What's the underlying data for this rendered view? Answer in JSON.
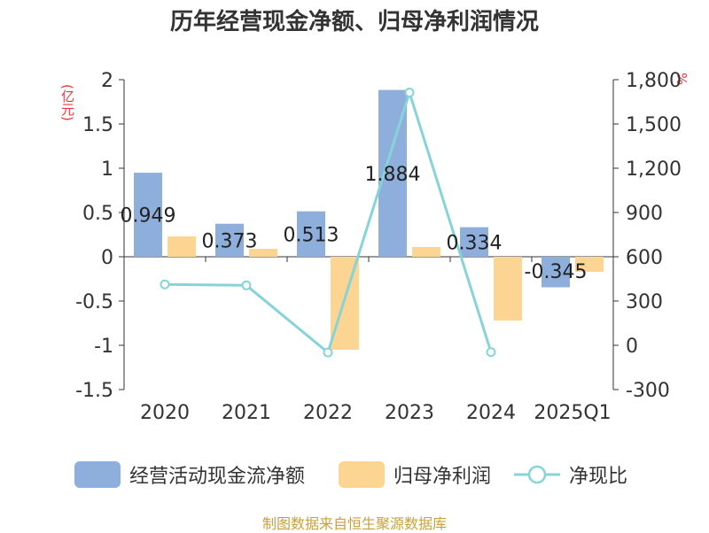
{
  "title": "历年经营现金净额、归母净利润情况",
  "source": "制图数据来自恒生聚源数据库",
  "chart_data": {
    "type": "bar",
    "title": "历年经营现金净额、归母净利润情况",
    "categories": [
      "2020",
      "2021",
      "2022",
      "2023",
      "2024",
      "2025Q1"
    ],
    "left_axis": {
      "unit": "(亿元)",
      "min": -1.5,
      "max": 2,
      "ticks": [
        "2",
        "1.5",
        "1",
        "0.5",
        "0",
        "-0.5",
        "-1",
        "-1.5"
      ],
      "tick_values": [
        2,
        1.5,
        1,
        0.5,
        0,
        -0.5,
        -1,
        -1.5
      ]
    },
    "right_axis": {
      "unit": "%",
      "min": -300,
      "max": 1800,
      "ticks": [
        "1,800",
        "1,500",
        "1,200",
        "900",
        "600",
        "300",
        "0",
        "-300"
      ],
      "tick_values": [
        1800,
        1500,
        1200,
        900,
        600,
        300,
        0,
        -300
      ]
    },
    "series": [
      {
        "name": "经营活动现金流净额",
        "type": "bar",
        "axis": "left",
        "color": "#8eaedc",
        "values": [
          0.949,
          0.373,
          0.513,
          1.884,
          0.334,
          -0.345
        ],
        "labels": [
          "0.949",
          "0.373",
          "0.513",
          "1.884",
          "0.334",
          "-0.345"
        ]
      },
      {
        "name": "归母净利润",
        "type": "bar",
        "axis": "left",
        "color": "#fdd593",
        "values": [
          0.23,
          0.09,
          -1.05,
          0.11,
          -0.72,
          -0.17
        ]
      },
      {
        "name": "净现比",
        "type": "line",
        "axis": "right",
        "color": "#86d3d9",
        "values": [
          412.6,
          406.2,
          -48.9,
          1712.7,
          -46.4,
          null
        ]
      }
    ]
  },
  "legend": [
    {
      "label": "经营活动现金流净额",
      "color": "#8eaedc",
      "kind": "swatch"
    },
    {
      "label": "归母净利润",
      "color": "#fdd593",
      "kind": "swatch"
    },
    {
      "label": "净现比",
      "color": "#86d3d9",
      "kind": "line"
    }
  ]
}
